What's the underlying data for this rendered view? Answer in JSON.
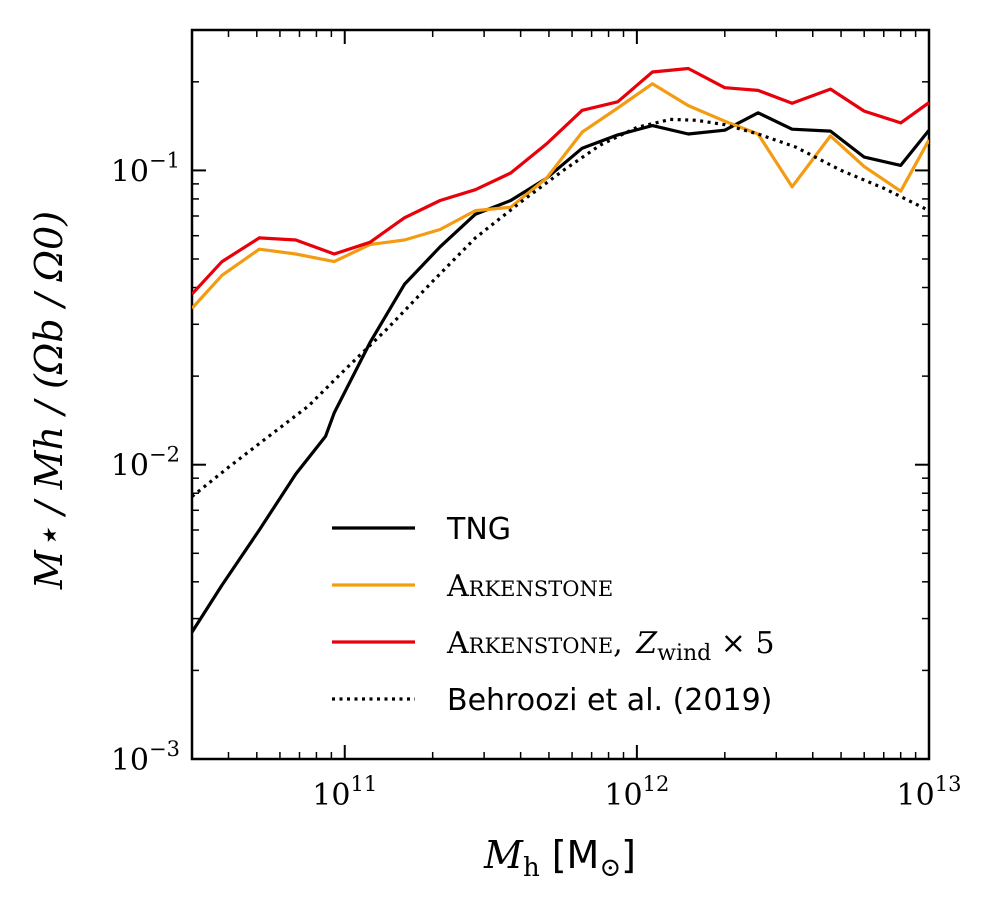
{
  "chart_data": {
    "type": "line",
    "x_scale": "log",
    "y_scale": "log",
    "xlim": [
      30000000000.0,
      10000000000000.0
    ],
    "ylim": [
      0.001,
      0.3
    ],
    "xlabel": {
      "var": "M",
      "sub": "h",
      "unit": "[M",
      "unit_sub": "⊙",
      "unit_close": "]"
    },
    "ylabel": {
      "text": "M⋆ / Mh / (Ωb / Ω0)"
    },
    "x_ticks": [
      {
        "value": 100000000000.0,
        "base": "10",
        "exp": "11"
      },
      {
        "value": 1000000000000.0,
        "base": "10",
        "exp": "12"
      },
      {
        "value": 10000000000000.0,
        "base": "10",
        "exp": "13"
      }
    ],
    "y_ticks": [
      {
        "value": 0.001,
        "base": "10",
        "exp": "−3"
      },
      {
        "value": 0.01,
        "base": "10",
        "exp": "−2"
      },
      {
        "value": 0.1,
        "base": "10",
        "exp": "−1"
      }
    ],
    "grid": false,
    "legend_position": "bottom-right",
    "series": [
      {
        "name": "TNG",
        "label_parts": [
          "TNG"
        ],
        "color": "#000000",
        "style": "solid",
        "x": [
          30000000000.0,
          38000000000.0,
          51000000000.0,
          68000000000.0,
          92000000000.0,
          122000000000.0,
          160000000000.0,
          212000000000.0,
          280000000000.0,
          370000000000.0,
          490000000000.0,
          650000000000.0,
          86000000000.0,
          860000000000.0,
          1130000000000.0,
          1500000000000.0,
          2000000000000.0,
          2600000000000.0,
          3400000000000.0,
          4600000000000.0,
          6000000000000.0,
          8000000000000.0,
          10000000000000.0
        ],
        "y": [
          0.0027,
          0.0039,
          0.006,
          0.0093,
          0.015,
          0.026,
          0.041,
          0.055,
          0.071,
          0.079,
          0.094,
          0.119,
          0.0125,
          0.132,
          0.142,
          0.133,
          0.137,
          0.157,
          0.138,
          0.136,
          0.111,
          0.104,
          0.137
        ]
      },
      {
        "name": "Arkenstone",
        "label_parts": [
          "Arkenstone"
        ],
        "color": "#f39c12",
        "style": "solid",
        "x": [
          30000000000.0,
          38000000000.0,
          51000000000.0,
          68000000000.0,
          92000000000.0,
          122000000000.0,
          160000000000.0,
          212000000000.0,
          280000000000.0,
          370000000000.0,
          490000000000.0,
          650000000000.0,
          860000000000.0,
          1130000000000.0,
          1500000000000.0,
          2000000000000.0,
          2600000000000.0,
          3400000000000.0,
          4600000000000.0,
          6000000000000.0,
          8000000000000.0,
          10000000000000.0
        ],
        "y": [
          0.034,
          0.044,
          0.054,
          0.052,
          0.049,
          0.056,
          0.058,
          0.063,
          0.073,
          0.075,
          0.094,
          0.135,
          0.163,
          0.197,
          0.166,
          0.147,
          0.133,
          0.088,
          0.131,
          0.103,
          0.085,
          0.127
        ]
      },
      {
        "name": "Arkenstone, Z_wind × 5",
        "label_parts": [
          "Arkenstone, ",
          "Z",
          "wind",
          " × 5"
        ],
        "color": "#e8000b",
        "style": "solid",
        "x": [
          30000000000.0,
          38000000000.0,
          51000000000.0,
          68000000000.0,
          92000000000.0,
          122000000000.0,
          160000000000.0,
          212000000000.0,
          280000000000.0,
          370000000000.0,
          490000000000.0,
          650000000000.0,
          860000000000.0,
          1130000000000.0,
          1500000000000.0,
          2000000000000.0,
          2600000000000.0,
          3400000000000.0,
          4600000000000.0,
          6000000000000.0,
          8000000000000.0,
          10000000000000.0
        ],
        "y": [
          0.038,
          0.049,
          0.059,
          0.058,
          0.052,
          0.057,
          0.069,
          0.079,
          0.086,
          0.098,
          0.123,
          0.16,
          0.171,
          0.216,
          0.222,
          0.191,
          0.187,
          0.169,
          0.189,
          0.159,
          0.145,
          0.17
        ]
      },
      {
        "name": "Behroozi et al. (2019)",
        "label_parts": [
          "Behroozi et al. (2019)"
        ],
        "color": "#000000",
        "style": "dotted",
        "x": [
          30000000000.0,
          40000000000.0,
          55000000000.0,
          75000000000.0,
          100000000000.0,
          140000000000.0,
          200000000000.0,
          280000000000.0,
          400000000000.0,
          560000000000.0,
          750000000000.0,
          1000000000000.0,
          1300000000000.0,
          1600000000000.0,
          2000000000000.0,
          2600000000000.0,
          3500000000000.0,
          5000000000000.0,
          7000000000000.0,
          10000000000000.0
        ],
        "y": [
          0.0078,
          0.0098,
          0.0125,
          0.0158,
          0.021,
          0.029,
          0.042,
          0.059,
          0.078,
          0.1,
          0.122,
          0.14,
          0.149,
          0.148,
          0.143,
          0.133,
          0.12,
          0.1,
          0.087,
          0.073
        ]
      }
    ]
  }
}
